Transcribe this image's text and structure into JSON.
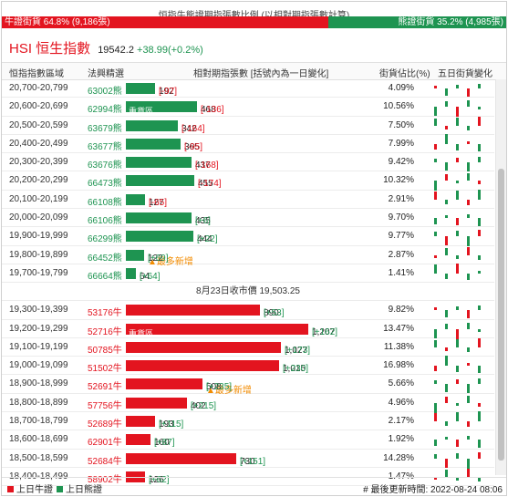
{
  "ratio": {
    "title": "恒指牛熊證期指張數比例 (以相對期指張數計算)",
    "bull_label": "牛證街貨 64.8% (9,186張)",
    "bear_label": "熊證街貨 35.2% (4,985張)",
    "bull_fraction": 0.648,
    "bull_color": "#e3141f",
    "bear_color": "#1e9451"
  },
  "index": {
    "name": "HSI 恒生指數",
    "price": "19542.2",
    "change": "+38.99(+0.2%)"
  },
  "columns": {
    "range": "恒指指數區域",
    "code": "法興精選",
    "bar": "相對期指張數 [括號內為一日變化]",
    "pct": "街貨佔比(%)",
    "spark": "五日街貨變化"
  },
  "bear_rows": [
    {
      "range": "20,700-20,799",
      "code": "63002熊",
      "value": "192",
      "change": "[-97]",
      "change_sign": "neg",
      "pct": "4.09%",
      "bar": 192,
      "tag": ""
    },
    {
      "range": "20,600-20,699",
      "code": "62994熊",
      "value": "468",
      "change": "[-136]",
      "change_sign": "neg",
      "pct": "10.56%",
      "bar": 468,
      "tag": "重貨區"
    },
    {
      "range": "20,500-20,599",
      "code": "63679熊",
      "value": "342",
      "change": "[-164]",
      "change_sign": "neg",
      "pct": "7.50%",
      "bar": 342,
      "tag": ""
    },
    {
      "range": "20,400-20,499",
      "code": "63677熊",
      "value": "365",
      "change": "[-95]",
      "change_sign": "neg",
      "pct": "7.99%",
      "bar": 365,
      "tag": ""
    },
    {
      "range": "20,300-20,399",
      "code": "63676熊",
      "value": "437",
      "change": "[-168]",
      "change_sign": "neg",
      "pct": "9.42%",
      "bar": 437,
      "tag": ""
    },
    {
      "range": "20,200-20,299",
      "code": "66473熊",
      "value": "455",
      "change": "[-174]",
      "change_sign": "neg",
      "pct": "10.32%",
      "bar": 455,
      "tag": ""
    },
    {
      "range": "20,100-20,199",
      "code": "66108熊",
      "value": "127",
      "change": "[-65]",
      "change_sign": "neg",
      "pct": "2.91%",
      "bar": 127,
      "tag": ""
    },
    {
      "range": "20,000-20,099",
      "code": "66106熊",
      "value": "435",
      "change": "[+6]",
      "change_sign": "pos",
      "pct": "9.70%",
      "bar": 435,
      "tag": ""
    },
    {
      "range": "19,900-19,999",
      "code": "66299熊",
      "value": "444",
      "change": "[+22]",
      "change_sign": "pos",
      "pct": "9.77%",
      "bar": 444,
      "tag": ""
    },
    {
      "range": "19,800-19,899",
      "code": "66452熊",
      "value": "122",
      "change": "[+69]",
      "change_sign": "pos",
      "pct": "2.87%",
      "bar": 122,
      "tag": "▲最多新增"
    },
    {
      "range": "19,700-19,799",
      "code": "66664熊",
      "value": "64",
      "change": "[+64]",
      "change_sign": "pos",
      "pct": "1.41%",
      "bar": 64,
      "tag": ""
    }
  ],
  "divider": "8月23日收市價 19,503.25",
  "bull_rows": [
    {
      "range": "19,300-19,399",
      "code": "53176牛",
      "value": "890",
      "change": "[+53]",
      "change_sign": "pos",
      "pct": "9.82%",
      "bar": 890,
      "tag": ""
    },
    {
      "range": "19,200-19,299",
      "code": "52716牛",
      "value": "1,207",
      "change": "[+162]",
      "change_sign": "pos",
      "pct": "13.47%",
      "bar": 1207,
      "tag": "重貨區"
    },
    {
      "range": "19,100-19,199",
      "code": "50785牛",
      "value": "1,027",
      "change": "[+173]",
      "change_sign": "pos",
      "pct": "11.38%",
      "bar": 1027,
      "tag": ""
    },
    {
      "range": "19,000-19,099",
      "code": "51502牛",
      "value": "1,015",
      "change": "[+230]",
      "change_sign": "pos",
      "pct": "16.98%",
      "bar": 1015,
      "tag": ""
    },
    {
      "range": "18,900-18,999",
      "code": "52691牛",
      "value": "508",
      "change": "[+235]",
      "change_sign": "pos",
      "pct": "5.66%",
      "bar": 508,
      "tag": "▲最多新增"
    },
    {
      "range": "18,800-18,899",
      "code": "57756牛",
      "value": "402",
      "change": "[+215]",
      "change_sign": "pos",
      "pct": "4.96%",
      "bar": 402,
      "tag": ""
    },
    {
      "range": "18,700-18,799",
      "code": "52689牛",
      "value": "193",
      "change": "[+115]",
      "change_sign": "pos",
      "pct": "2.17%",
      "bar": 193,
      "tag": ""
    },
    {
      "range": "18,600-18,699",
      "code": "62901牛",
      "value": "160",
      "change": "[+87]",
      "change_sign": "pos",
      "pct": "1.92%",
      "bar": 160,
      "tag": ""
    },
    {
      "range": "18,500-18,599",
      "code": "52684牛",
      "value": "730",
      "change": "[+151]",
      "change_sign": "pos",
      "pct": "14.28%",
      "bar": 730,
      "tag": ""
    },
    {
      "range": "18,400-18,499",
      "code": "58902牛",
      "value": "126",
      "change": "[+62]",
      "change_sign": "pos",
      "pct": "1.47%",
      "bar": 126,
      "tag": ""
    }
  ],
  "bar_max": 1207,
  "footer": {
    "legend_bull": "上日牛證",
    "legend_bear": "上日熊證",
    "updated": "# 最後更新時間: 2022-08-24 08:06"
  }
}
